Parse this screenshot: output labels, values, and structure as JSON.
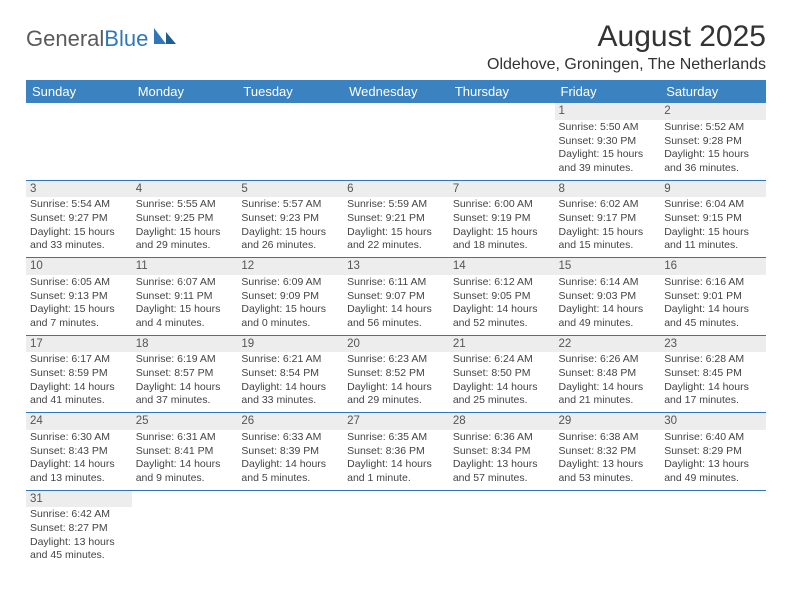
{
  "logo": {
    "text1": "General",
    "text2": "Blue",
    "color1": "#5a5a5a",
    "color2": "#2f77b9",
    "sail_fill": "#2f77b9"
  },
  "header": {
    "month_title": "August 2025",
    "location": "Oldehove, Groningen, The Netherlands"
  },
  "style": {
    "header_bg": "#3b83c0",
    "header_fg": "#ffffff",
    "shade_bg": "#ededed",
    "row_border": "#2f77b9",
    "text_color": "#444444",
    "daynum_color": "#555555"
  },
  "day_headers": [
    "Sunday",
    "Monday",
    "Tuesday",
    "Wednesday",
    "Thursday",
    "Friday",
    "Saturday"
  ],
  "weeks": [
    [
      null,
      null,
      null,
      null,
      null,
      {
        "n": "1",
        "sr": "Sunrise: 5:50 AM",
        "ss": "Sunset: 9:30 PM",
        "dl": "Daylight: 15 hours and 39 minutes."
      },
      {
        "n": "2",
        "sr": "Sunrise: 5:52 AM",
        "ss": "Sunset: 9:28 PM",
        "dl": "Daylight: 15 hours and 36 minutes."
      }
    ],
    [
      {
        "n": "3",
        "sr": "Sunrise: 5:54 AM",
        "ss": "Sunset: 9:27 PM",
        "dl": "Daylight: 15 hours and 33 minutes."
      },
      {
        "n": "4",
        "sr": "Sunrise: 5:55 AM",
        "ss": "Sunset: 9:25 PM",
        "dl": "Daylight: 15 hours and 29 minutes."
      },
      {
        "n": "5",
        "sr": "Sunrise: 5:57 AM",
        "ss": "Sunset: 9:23 PM",
        "dl": "Daylight: 15 hours and 26 minutes."
      },
      {
        "n": "6",
        "sr": "Sunrise: 5:59 AM",
        "ss": "Sunset: 9:21 PM",
        "dl": "Daylight: 15 hours and 22 minutes."
      },
      {
        "n": "7",
        "sr": "Sunrise: 6:00 AM",
        "ss": "Sunset: 9:19 PM",
        "dl": "Daylight: 15 hours and 18 minutes."
      },
      {
        "n": "8",
        "sr": "Sunrise: 6:02 AM",
        "ss": "Sunset: 9:17 PM",
        "dl": "Daylight: 15 hours and 15 minutes."
      },
      {
        "n": "9",
        "sr": "Sunrise: 6:04 AM",
        "ss": "Sunset: 9:15 PM",
        "dl": "Daylight: 15 hours and 11 minutes."
      }
    ],
    [
      {
        "n": "10",
        "sr": "Sunrise: 6:05 AM",
        "ss": "Sunset: 9:13 PM",
        "dl": "Daylight: 15 hours and 7 minutes."
      },
      {
        "n": "11",
        "sr": "Sunrise: 6:07 AM",
        "ss": "Sunset: 9:11 PM",
        "dl": "Daylight: 15 hours and 4 minutes."
      },
      {
        "n": "12",
        "sr": "Sunrise: 6:09 AM",
        "ss": "Sunset: 9:09 PM",
        "dl": "Daylight: 15 hours and 0 minutes."
      },
      {
        "n": "13",
        "sr": "Sunrise: 6:11 AM",
        "ss": "Sunset: 9:07 PM",
        "dl": "Daylight: 14 hours and 56 minutes."
      },
      {
        "n": "14",
        "sr": "Sunrise: 6:12 AM",
        "ss": "Sunset: 9:05 PM",
        "dl": "Daylight: 14 hours and 52 minutes."
      },
      {
        "n": "15",
        "sr": "Sunrise: 6:14 AM",
        "ss": "Sunset: 9:03 PM",
        "dl": "Daylight: 14 hours and 49 minutes."
      },
      {
        "n": "16",
        "sr": "Sunrise: 6:16 AM",
        "ss": "Sunset: 9:01 PM",
        "dl": "Daylight: 14 hours and 45 minutes."
      }
    ],
    [
      {
        "n": "17",
        "sr": "Sunrise: 6:17 AM",
        "ss": "Sunset: 8:59 PM",
        "dl": "Daylight: 14 hours and 41 minutes."
      },
      {
        "n": "18",
        "sr": "Sunrise: 6:19 AM",
        "ss": "Sunset: 8:57 PM",
        "dl": "Daylight: 14 hours and 37 minutes."
      },
      {
        "n": "19",
        "sr": "Sunrise: 6:21 AM",
        "ss": "Sunset: 8:54 PM",
        "dl": "Daylight: 14 hours and 33 minutes."
      },
      {
        "n": "20",
        "sr": "Sunrise: 6:23 AM",
        "ss": "Sunset: 8:52 PM",
        "dl": "Daylight: 14 hours and 29 minutes."
      },
      {
        "n": "21",
        "sr": "Sunrise: 6:24 AM",
        "ss": "Sunset: 8:50 PM",
        "dl": "Daylight: 14 hours and 25 minutes."
      },
      {
        "n": "22",
        "sr": "Sunrise: 6:26 AM",
        "ss": "Sunset: 8:48 PM",
        "dl": "Daylight: 14 hours and 21 minutes."
      },
      {
        "n": "23",
        "sr": "Sunrise: 6:28 AM",
        "ss": "Sunset: 8:45 PM",
        "dl": "Daylight: 14 hours and 17 minutes."
      }
    ],
    [
      {
        "n": "24",
        "sr": "Sunrise: 6:30 AM",
        "ss": "Sunset: 8:43 PM",
        "dl": "Daylight: 14 hours and 13 minutes."
      },
      {
        "n": "25",
        "sr": "Sunrise: 6:31 AM",
        "ss": "Sunset: 8:41 PM",
        "dl": "Daylight: 14 hours and 9 minutes."
      },
      {
        "n": "26",
        "sr": "Sunrise: 6:33 AM",
        "ss": "Sunset: 8:39 PM",
        "dl": "Daylight: 14 hours and 5 minutes."
      },
      {
        "n": "27",
        "sr": "Sunrise: 6:35 AM",
        "ss": "Sunset: 8:36 PM",
        "dl": "Daylight: 14 hours and 1 minute."
      },
      {
        "n": "28",
        "sr": "Sunrise: 6:36 AM",
        "ss": "Sunset: 8:34 PM",
        "dl": "Daylight: 13 hours and 57 minutes."
      },
      {
        "n": "29",
        "sr": "Sunrise: 6:38 AM",
        "ss": "Sunset: 8:32 PM",
        "dl": "Daylight: 13 hours and 53 minutes."
      },
      {
        "n": "30",
        "sr": "Sunrise: 6:40 AM",
        "ss": "Sunset: 8:29 PM",
        "dl": "Daylight: 13 hours and 49 minutes."
      }
    ],
    [
      {
        "n": "31",
        "sr": "Sunrise: 6:42 AM",
        "ss": "Sunset: 8:27 PM",
        "dl": "Daylight: 13 hours and 45 minutes."
      },
      null,
      null,
      null,
      null,
      null,
      null
    ]
  ]
}
